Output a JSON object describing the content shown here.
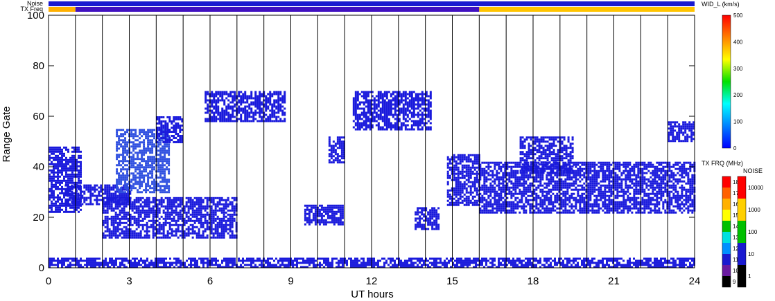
{
  "chart_data": {
    "type": "heatmap",
    "xlabel": "UT hours",
    "ylabel": "Range Gate",
    "xlim": [
      0,
      24
    ],
    "ylim": [
      0,
      100
    ],
    "x_ticks": [
      "0",
      "3",
      "6",
      "9",
      "12",
      "15",
      "18",
      "21",
      "24"
    ],
    "y_ticks": [
      "0",
      "20",
      "40",
      "60",
      "80",
      "100"
    ],
    "vertical_lines_every_hours": 1,
    "top_bars": [
      {
        "label": "Noise",
        "segments": [
          {
            "x0": 0,
            "x1": 24,
            "color": "#1a1ad0"
          }
        ]
      },
      {
        "label": "TX Freq",
        "segments": [
          {
            "x0": 0,
            "x1": 1,
            "color": "#ffb000"
          },
          {
            "x0": 1,
            "x1": 16,
            "color": "#4010c0"
          },
          {
            "x0": 16,
            "x1": 24,
            "color": "#ffc400"
          }
        ]
      }
    ],
    "echo_regions": [
      {
        "x0": 0.0,
        "x1": 1.2,
        "y0": 22,
        "y1": 48,
        "color": "#1a1adc"
      },
      {
        "x0": 0.6,
        "x1": 3.0,
        "y0": 25,
        "y1": 33,
        "color": "#1a1adc"
      },
      {
        "x0": 2.0,
        "x1": 7.0,
        "y0": 12,
        "y1": 28,
        "color": "#1a1adc"
      },
      {
        "x0": 2.5,
        "x1": 4.5,
        "y0": 30,
        "y1": 55,
        "color": "#3050e0"
      },
      {
        "x0": 4.0,
        "x1": 5.0,
        "y0": 50,
        "y1": 60,
        "color": "#1a1adc"
      },
      {
        "x0": 5.8,
        "x1": 8.8,
        "y0": 58,
        "y1": 70,
        "color": "#1a1adc"
      },
      {
        "x0": 9.5,
        "x1": 10.9,
        "y0": 17,
        "y1": 25,
        "color": "#1a1adc"
      },
      {
        "x0": 10.4,
        "x1": 11.0,
        "y0": 42,
        "y1": 52,
        "color": "#1a1adc"
      },
      {
        "x0": 11.3,
        "x1": 14.2,
        "y0": 55,
        "y1": 70,
        "color": "#1a1adc"
      },
      {
        "x0": 13.6,
        "x1": 14.5,
        "y0": 15,
        "y1": 24,
        "color": "#1a1adc"
      },
      {
        "x0": 14.8,
        "x1": 16.0,
        "y0": 25,
        "y1": 45,
        "color": "#1a1adc"
      },
      {
        "x0": 16.0,
        "x1": 24.0,
        "y0": 22,
        "y1": 42,
        "color": "#1a1adc"
      },
      {
        "x0": 17.5,
        "x1": 19.5,
        "y0": 38,
        "y1": 52,
        "color": "#1a1adc"
      },
      {
        "x0": 23.0,
        "x1": 24.0,
        "y0": 50,
        "y1": 58,
        "color": "#1a1adc"
      },
      {
        "x0": 0.0,
        "x1": 24.0,
        "y0": 0,
        "y1": 4,
        "color": "#1a1adc"
      }
    ],
    "colorbars": [
      {
        "title": "WID_L (km/s)",
        "ticks": [
          "0",
          "100",
          "200",
          "300",
          "400",
          "500"
        ],
        "colors": [
          "#0000ff",
          "#0080ff",
          "#00ffff",
          "#00e000",
          "#ffff00",
          "#ff8000",
          "#ff0000"
        ]
      },
      {
        "title": "TX FRQ (MHz)",
        "ticks": [
          "9",
          "10",
          "11",
          "12",
          "13",
          "14",
          "15",
          "16",
          "17",
          "18"
        ],
        "colors": [
          "#000000",
          "#6a1aa0",
          "#1a1ad0",
          "#0090ff",
          "#00e0e0",
          "#00c000",
          "#ffff00",
          "#ffb000",
          "#ff6000",
          "#ff0000"
        ]
      },
      {
        "title": "NOISE",
        "ticks": [
          "1",
          "10",
          "100",
          "1000",
          "10000"
        ],
        "colors": [
          "#000000",
          "#1a1ad0",
          "#00c000",
          "#ffd000",
          "#ff0000"
        ]
      }
    ]
  }
}
